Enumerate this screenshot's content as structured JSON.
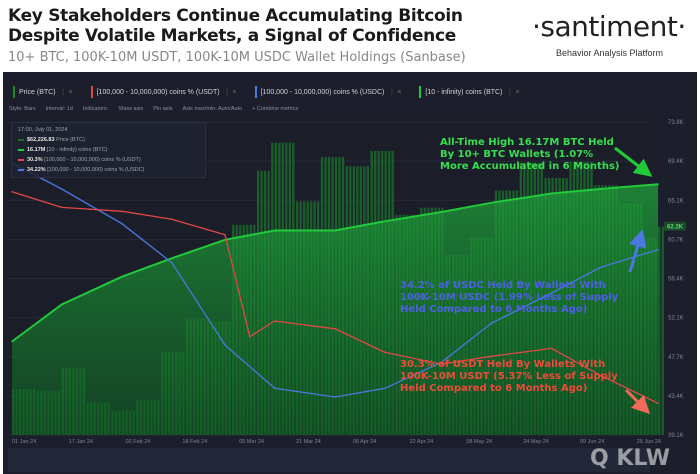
{
  "header": {
    "title_line1": "Key Stakeholders Continue Accumulating Bitcoin",
    "title_line2": "Despite Volatile Markets, a Signal of Confidence",
    "subtitle": "10+ BTC, 100K-10M USDT, 100K-10M USDC Wallet Holdings (Sanbase)",
    "logo": "·santiment·",
    "logo_tagline": "Behavior Analysis Platform"
  },
  "tabs": [
    {
      "label": "Price (BTC)",
      "color": "#1f8a2e"
    },
    {
      "label": "[100,000 - 10,000,000) coins % (USDT)",
      "color": "#e04848"
    },
    {
      "label": "[100,000 - 10,000,000) coins % (USDC)",
      "color": "#4a78e0"
    },
    {
      "label": "[10 - infinity) coins (BTC)",
      "color": "#22c93a"
    }
  ],
  "toolbar": {
    "style": "Style: Bars",
    "interval": "Interval: 1d",
    "indicators": "Indicators:",
    "show_axis": "Show axis",
    "pin_axis": "Pin axis",
    "axis_maxmin": "Axis max/min: Auto/Auto",
    "combine": "+ Combine metrics"
  },
  "legend": {
    "date": "17:00, July 01, 2024",
    "rows": [
      {
        "value": "$62,226.83",
        "label": "Price (BTC)",
        "color": "#1f6a2a"
      },
      {
        "value": "16.17M",
        "label": "[10 - infinity) coins (BTC)",
        "color": "#22c93a"
      },
      {
        "value": "30.3%",
        "label": "[100,000 - 10,000,000) coins % (USDT)",
        "color": "#e04848"
      },
      {
        "value": "34.22%",
        "label": "[100,000 - 10,000,000) coins % (USDC)",
        "color": "#4a78e0"
      }
    ]
  },
  "annotations": {
    "btc": [
      "All-Time High 16.17M BTC Held",
      "By 10+ BTC Wallets (1.07%",
      "More Accumulated in 6 Months)"
    ],
    "usdc": [
      "34.2% of USDC Held By Wallets With",
      "100K-10M USDC (1.99% Less of Supply",
      "Held Compared to 6 Months Ago)"
    ],
    "usdt": [
      "30.3% of USDT Held By Wallets With",
      "100K-10M USDT (5.37% Less of Supply",
      "Held Compared to 6 Months Ago)"
    ]
  },
  "watermark": "QKLW",
  "chart_data": {
    "type": "bar+line",
    "x_tick_labels": [
      "01 Jan 24",
      "17 Jan 24",
      "02 Feb 24",
      "18 Feb 24",
      "05 Mar 24",
      "21 Mar 24",
      "06 Apr 24",
      "22 Apr 24",
      "08 May 24",
      "24 May 24",
      "09 Jun 24",
      "25 Jun 24"
    ],
    "y_tick_labels": [
      "73.8K",
      "69.4K",
      "65.1K",
      "60.7K",
      "56.4K",
      "52.1K",
      "47.7K",
      "43.4K",
      "39.1K"
    ],
    "price_axis_current": "62.2K",
    "ylim": [
      39100,
      73800
    ],
    "grid": true,
    "series": [
      {
        "name": "Price (BTC)",
        "kind": "bar",
        "color": "#1f6a2a",
        "dates": [
          "2024-01-01",
          "2024-01-08",
          "2024-01-15",
          "2024-01-22",
          "2024-01-29",
          "2024-02-05",
          "2024-02-12",
          "2024-02-19",
          "2024-02-26",
          "2024-03-03",
          "2024-03-10",
          "2024-03-14",
          "2024-03-21",
          "2024-03-28",
          "2024-04-04",
          "2024-04-11",
          "2024-04-18",
          "2024-04-25",
          "2024-05-02",
          "2024-05-09",
          "2024-05-16",
          "2024-05-23",
          "2024-05-30",
          "2024-06-06",
          "2024-06-13",
          "2024-06-20",
          "2024-06-27",
          "2024-07-01"
        ],
        "values": [
          44200,
          44000,
          46500,
          42700,
          41800,
          43000,
          48300,
          52000,
          51700,
          62400,
          68400,
          71500,
          65000,
          69900,
          68900,
          70600,
          63500,
          64300,
          59100,
          61000,
          66200,
          69300,
          67600,
          69400,
          66800,
          64800,
          61000,
          62200
        ]
      },
      {
        "name": "[10 - infinity) coins (BTC)",
        "kind": "line",
        "unit": "M BTC",
        "color": "#22c93a",
        "dates": [
          "2024-01-01",
          "2024-01-15",
          "2024-02-01",
          "2024-02-15",
          "2024-03-01",
          "2024-03-15",
          "2024-04-01",
          "2024-04-15",
          "2024-05-01",
          "2024-05-15",
          "2024-06-01",
          "2024-06-15",
          "2024-07-01"
        ],
        "values": [
          16.0,
          16.04,
          16.07,
          16.09,
          16.11,
          16.12,
          16.12,
          16.13,
          16.14,
          16.15,
          16.16,
          16.165,
          16.17
        ]
      },
      {
        "name": "[100,000 - 10,000,000) coins % (USDT)",
        "kind": "line",
        "unit": "%",
        "color": "#e04848",
        "dates": [
          "2024-01-01",
          "2024-01-15",
          "2024-02-01",
          "2024-02-15",
          "2024-03-01",
          "2024-03-08",
          "2024-03-15",
          "2024-04-01",
          "2024-04-15",
          "2024-05-01",
          "2024-05-15",
          "2024-06-01",
          "2024-06-15",
          "2024-07-01"
        ],
        "values": [
          35.7,
          35.3,
          35.2,
          35.0,
          34.6,
          32.0,
          32.4,
          32.2,
          31.6,
          31.3,
          31.5,
          31.7,
          31.0,
          30.3
        ]
      },
      {
        "name": "[100,000 - 10,000,000) coins % (USDC)",
        "kind": "line",
        "unit": "%",
        "color": "#4a78e0",
        "dates": [
          "2024-01-01",
          "2024-01-15",
          "2024-02-01",
          "2024-02-15",
          "2024-03-01",
          "2024-03-15",
          "2024-04-01",
          "2024-04-15",
          "2024-05-01",
          "2024-05-15",
          "2024-06-01",
          "2024-06-15",
          "2024-07-01"
        ],
        "values": [
          36.2,
          35.6,
          34.8,
          33.9,
          32.0,
          31.0,
          30.8,
          31.0,
          31.6,
          32.5,
          33.2,
          33.8,
          34.2
        ]
      }
    ]
  }
}
